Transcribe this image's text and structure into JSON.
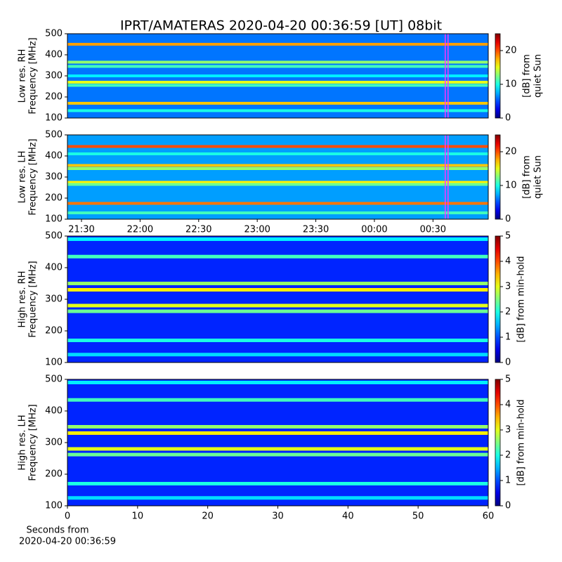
{
  "chart_data": [
    {
      "type": "heatmap",
      "title": "IPRT/AMATERAS 2020-04-20 00:36:59 [UT]   08bit",
      "ylabel": [
        "Low res. RH",
        "Frequency [MHz]"
      ],
      "ylim": [
        100,
        500
      ],
      "yticks": [
        100,
        200,
        300,
        400,
        500
      ],
      "xlim": [
        22.8,
        238.3
      ],
      "marker_x": 217,
      "colorbar": {
        "lim": [
          0,
          25
        ],
        "ticks": [
          0,
          10,
          20
        ],
        "label": [
          "[dB] from",
          "quiet Sun"
        ]
      },
      "background": 6,
      "bands": [
        {
          "freq": 450,
          "value": 18
        },
        {
          "freq": 365,
          "value": 13
        },
        {
          "freq": 345,
          "value": 11
        },
        {
          "freq": 300,
          "value": 9
        },
        {
          "freq": 270,
          "value": 15
        },
        {
          "freq": 255,
          "value": 11
        },
        {
          "freq": 170,
          "value": 17
        },
        {
          "freq": 135,
          "value": 10
        }
      ]
    },
    {
      "type": "heatmap",
      "ylabel": [
        "Low res. LH",
        "Frequency [MHz]"
      ],
      "ylim": [
        100,
        500
      ],
      "yticks": [
        100,
        200,
        300,
        400,
        500
      ],
      "xlim": [
        22.8,
        238.3
      ],
      "xticks": [
        {
          "value": 30,
          "label": "21:30"
        },
        {
          "value": 60,
          "label": "22:00"
        },
        {
          "value": 90,
          "label": "22:30"
        },
        {
          "value": 120,
          "label": "23:00"
        },
        {
          "value": 150,
          "label": "23:30"
        },
        {
          "value": 180,
          "label": "00:00"
        },
        {
          "value": 210,
          "label": "00:30"
        }
      ],
      "marker_x": 217,
      "colorbar": {
        "lim": [
          0,
          25
        ],
        "ticks": [
          0,
          10,
          20
        ],
        "label": [
          "[dB] from",
          "quiet Sun"
        ]
      },
      "background": 7,
      "bands": [
        {
          "freq": 445,
          "value": 20
        },
        {
          "freq": 410,
          "value": 10
        },
        {
          "freq": 355,
          "value": 17
        },
        {
          "freq": 340,
          "value": 13
        },
        {
          "freq": 275,
          "value": 16
        },
        {
          "freq": 265,
          "value": 12
        },
        {
          "freq": 175,
          "value": 19
        },
        {
          "freq": 130,
          "value": 11
        }
      ]
    },
    {
      "type": "heatmap",
      "ylabel": [
        "High res. RH",
        "Frequency [MHz]"
      ],
      "ylim": [
        100,
        500
      ],
      "yticks": [
        100,
        200,
        300,
        400,
        500
      ],
      "xlim": [
        0,
        60
      ],
      "colorbar": {
        "lim": [
          0,
          5
        ],
        "ticks": [
          0,
          1,
          2,
          3,
          4,
          5
        ],
        "label": [
          "[dB] from min-hold"
        ]
      },
      "background": 0.8,
      "bands": [
        {
          "freq": 490,
          "value": 1.8
        },
        {
          "freq": 435,
          "value": 2.2
        },
        {
          "freq": 350,
          "value": 2.6
        },
        {
          "freq": 330,
          "value": 3.2
        },
        {
          "freq": 280,
          "value": 3
        },
        {
          "freq": 262,
          "value": 2.4
        },
        {
          "freq": 170,
          "value": 2
        },
        {
          "freq": 125,
          "value": 1.7
        }
      ]
    },
    {
      "type": "heatmap",
      "ylabel": [
        "High res. LH",
        "Frequency [MHz]"
      ],
      "ylim": [
        100,
        500
      ],
      "yticks": [
        100,
        200,
        300,
        400,
        500
      ],
      "xlim": [
        0,
        60
      ],
      "xticks": [
        0,
        10,
        20,
        30,
        40,
        50,
        60
      ],
      "xlabel": [
        "Seconds from",
        "2020-04-20 00:36:59"
      ],
      "colorbar": {
        "lim": [
          0,
          5
        ],
        "ticks": [
          0,
          1,
          2,
          3,
          4,
          5
        ],
        "label": [
          "[dB] from min-hold"
        ]
      },
      "background": 0.8,
      "bands": [
        {
          "freq": 490,
          "value": 1.8
        },
        {
          "freq": 435,
          "value": 2.2
        },
        {
          "freq": 350,
          "value": 2.6
        },
        {
          "freq": 330,
          "value": 3.2
        },
        {
          "freq": 280,
          "value": 3
        },
        {
          "freq": 262,
          "value": 2.4
        },
        {
          "freq": 170,
          "value": 2
        },
        {
          "freq": 125,
          "value": 1.7
        }
      ]
    }
  ]
}
